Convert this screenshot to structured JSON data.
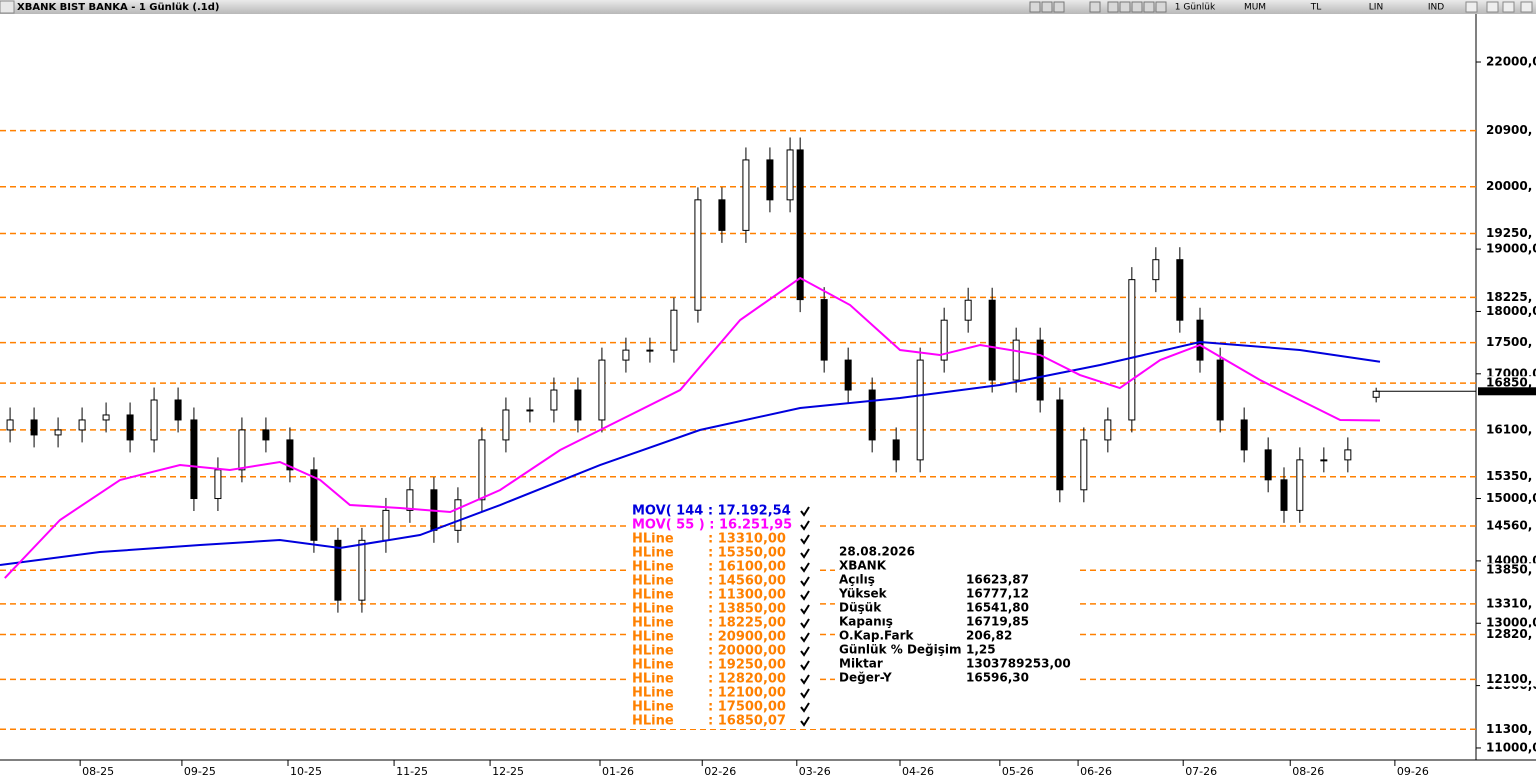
{
  "window": {
    "title": "XBANK BIST BANKA - 1 Günlük (.1d)",
    "toolbar": [
      "1 Günlük",
      "MUM",
      "TL",
      "LIN",
      "IND"
    ]
  },
  "chart_data": {
    "type": "candlestick",
    "x": [
      2.1,
      7.1,
      12.1,
      17.1,
      22.1,
      27.1,
      32.1,
      37.1,
      40.4,
      45.4,
      50.4,
      55.4,
      60.4,
      65.4,
      70.4,
      75.4,
      80.4,
      85.4,
      90.4,
      95.4,
      100.4,
      105.4,
      110.4,
      115.4,
      120.4,
      125.4,
      130.4,
      135.4,
      140.4,
      145.4,
      150.4,
      155.4,
      160.4,
      164.6,
      166.7,
      171.7,
      176.7,
      181.7,
      186.7,
      191.7,
      196.7,
      201.7,
      206.7,
      211.7,
      216.7,
      220.8,
      225.8,
      230.8,
      235.8,
      240.8,
      245.8,
      250,
      254.2,
      259.2,
      264.2,
      267.5,
      270.8,
      275.8,
      280.8,
      286.7
    ],
    "open": [
      16100,
      16260,
      16020,
      16100,
      16260,
      16340,
      15940,
      16580,
      16260,
      15000,
      15460,
      16100,
      15940,
      15460,
      14330,
      13370,
      14330,
      14810,
      15140,
      14490,
      14980,
      15940,
      16420,
      16420,
      16740,
      16260,
      17220,
      17380,
      17380,
      18020,
      19790,
      19300,
      20430,
      19790,
      20590,
      18190,
      17220,
      16740,
      15940,
      15620,
      17220,
      17860,
      18180,
      16900,
      17540,
      16580,
      15140,
      15940,
      16260,
      18510,
      18830,
      17860,
      17220,
      16260,
      15780,
      15300,
      14810,
      15620,
      15620,
      16623.87
    ],
    "high": [
      16460,
      16460,
      16300,
      16460,
      16540,
      16540,
      16780,
      16780,
      16460,
      15660,
      16300,
      16300,
      16140,
      15660,
      14530,
      14530,
      15010,
      15340,
      15340,
      15180,
      16140,
      16620,
      16620,
      16940,
      16940,
      17420,
      17580,
      17580,
      18220,
      19990,
      19990,
      20630,
      20630,
      20790,
      20790,
      18390,
      17420,
      16940,
      16140,
      17420,
      18060,
      18380,
      18380,
      17740,
      17740,
      16780,
      16140,
      16460,
      18710,
      19030,
      19030,
      18060,
      17420,
      16460,
      15980,
      15500,
      15820,
      15820,
      15980,
      16777.12
    ],
    "low": [
      15900,
      15820,
      15820,
      15900,
      16060,
      15740,
      15740,
      16060,
      14800,
      14800,
      15260,
      15740,
      15260,
      14130,
      13170,
      13170,
      14130,
      14610,
      14290,
      14290,
      14780,
      15740,
      16220,
      16220,
      16060,
      16060,
      17020,
      17180,
      17180,
      17820,
      19100,
      19100,
      19590,
      19590,
      17990,
      17020,
      16540,
      15740,
      15420,
      15420,
      17020,
      17660,
      16700,
      16700,
      16380,
      14940,
      14940,
      15740,
      16060,
      18310,
      17660,
      17020,
      16060,
      15580,
      15100,
      14610,
      14610,
      15420,
      15420,
      16541.8
    ],
    "close": [
      16260,
      16020,
      16100,
      16260,
      16340,
      15940,
      16580,
      16260,
      15000,
      15460,
      16100,
      15940,
      15460,
      14330,
      13370,
      14330,
      14810,
      15140,
      14490,
      14980,
      15940,
      16420,
      16420,
      16740,
      16260,
      17220,
      17380,
      17380,
      18020,
      19790,
      19300,
      20430,
      19790,
      20590,
      18190,
      17220,
      16740,
      15940,
      15620,
      17220,
      17860,
      18180,
      16900,
      17540,
      16580,
      15140,
      15940,
      16260,
      18510,
      18830,
      17860,
      17220,
      16260,
      15780,
      15300,
      14810,
      15620,
      15620,
      15780,
      16719.85
    ],
    "up_color": "#ffffff",
    "down_color": "#000000",
    "xlim": [
      0,
      307.5
    ],
    "xticks": [
      {
        "value": 16.7,
        "label": "08-25"
      },
      {
        "value": 37.9,
        "label": "09-25"
      },
      {
        "value": 60,
        "label": "10-25"
      },
      {
        "value": 82.1,
        "label": "11-25"
      },
      {
        "value": 102.1,
        "label": "12-25"
      },
      {
        "value": 125,
        "label": "01-26"
      },
      {
        "value": 146.3,
        "label": "02-26"
      },
      {
        "value": 166,
        "label": "03-26"
      },
      {
        "value": 187.5,
        "label": "04-26"
      },
      {
        "value": 208.3,
        "label": "05-26"
      },
      {
        "value": 224.6,
        "label": "06-26"
      },
      {
        "value": 246.5,
        "label": "07-26"
      },
      {
        "value": 268.8,
        "label": "08-26"
      },
      {
        "value": 290.6,
        "label": "09-26"
      }
    ],
    "ylim": [
      10807,
      22770
    ],
    "yticks": [
      {
        "value": 22000,
        "label": "22000,0"
      },
      {
        "value": 19000,
        "label": "19000,0"
      },
      {
        "value": 18000,
        "label": "18000,0"
      },
      {
        "value": 17000,
        "label": "17000,0"
      },
      {
        "value": 15000,
        "label": "15000,0"
      },
      {
        "value": 14000,
        "label": "14000,0"
      },
      {
        "value": 13000,
        "label": "13000,0"
      },
      {
        "value": 12000,
        "label": "12000,0"
      },
      {
        "value": 11000,
        "label": "11000,0"
      }
    ],
    "hline_color": "#ff8000",
    "hlines": [
      {
        "name": "HLine",
        "value": 13310,
        "label": "13310,",
        "legend": ": 13310,00"
      },
      {
        "name": "HLine",
        "value": 15350,
        "label": "15350,",
        "legend": ": 15350,00"
      },
      {
        "name": "HLine",
        "value": 16100,
        "label": "16100,",
        "legend": ": 16100,00"
      },
      {
        "name": "HLine",
        "value": 14560,
        "label": "14560,",
        "legend": ": 14560,00"
      },
      {
        "name": "HLine",
        "value": 11300,
        "label": "11300,",
        "legend": ": 11300,00"
      },
      {
        "name": "HLine",
        "value": 13850,
        "label": "13850,",
        "legend": ": 13850,00"
      },
      {
        "name": "HLine",
        "value": 18225,
        "label": "18225,",
        "legend": ": 18225,00"
      },
      {
        "name": "HLine",
        "value": 20900,
        "label": "20900,",
        "legend": ": 20900,00"
      },
      {
        "name": "HLine",
        "value": 20000,
        "label": "20000,",
        "legend": ": 20000,00"
      },
      {
        "name": "HLine",
        "value": 19250,
        "label": "19250,",
        "legend": ": 19250,00"
      },
      {
        "name": "HLine",
        "value": 12820,
        "label": "12820,",
        "legend": ": 12820,00"
      },
      {
        "name": "HLine",
        "value": 12100,
        "label": "12100,",
        "legend": ": 12100,00"
      },
      {
        "name": "HLine",
        "value": 17500,
        "label": "17500,",
        "legend": ": 17500,00"
      },
      {
        "name": "HLine",
        "value": 16850.07,
        "label": "16850,",
        "legend": ": 16850,07"
      }
    ],
    "series": [
      {
        "name": "MOV( 144 : 17.192,54",
        "color": "#0000dd",
        "x": [
          0,
          20.8,
          41.7,
          58.3,
          70.8,
          87.5,
          104.2,
          125,
          145.8,
          166.7,
          187.5,
          208.3,
          229.2,
          250,
          270.8,
          287.5
        ],
        "values": [
          13934,
          14142,
          14254,
          14335,
          14206,
          14415,
          14896,
          15537,
          16099,
          16452,
          16612,
          16820,
          17141,
          17510,
          17382,
          17193
        ]
      },
      {
        "name": "MOV( 55 ) : 16.251,95",
        "color": "#ff00ff",
        "x": [
          1,
          12.5,
          25,
          37.5,
          47.9,
          58.3,
          66.7,
          72.9,
          83.3,
          93.8,
          104.2,
          116.7,
          129.2,
          141.7,
          154.2,
          166.7,
          177.1,
          187.5,
          195.8,
          204.2,
          216.7,
          225,
          233.3,
          241.7,
          250,
          262.5,
          270.8,
          279.2,
          287.5
        ],
        "values": [
          13725,
          14656,
          15297,
          15537,
          15457,
          15586,
          15297,
          14896,
          14848,
          14784,
          15137,
          15778,
          16259,
          16740,
          17863,
          18536,
          18103,
          17382,
          17301,
          17462,
          17301,
          16980,
          16772,
          17221,
          17462,
          16901,
          16580,
          16259,
          16252
        ]
      }
    ]
  },
  "info": {
    "date": "28.08.2026",
    "symbol": "XBANK",
    "rows": [
      [
        "Açılış",
        "16623,87"
      ],
      [
        "Yüksek",
        "16777,12"
      ],
      [
        "Düşük",
        "16541,80"
      ],
      [
        "Kapanış",
        "16719,85"
      ],
      [
        "O.Kap.Fark",
        "206,82"
      ],
      [
        "Günlük % Değişim",
        "1,25"
      ],
      [
        "Miktar",
        "1303789253,00"
      ],
      [
        "Değer-Y",
        "16596,30"
      ]
    ]
  }
}
